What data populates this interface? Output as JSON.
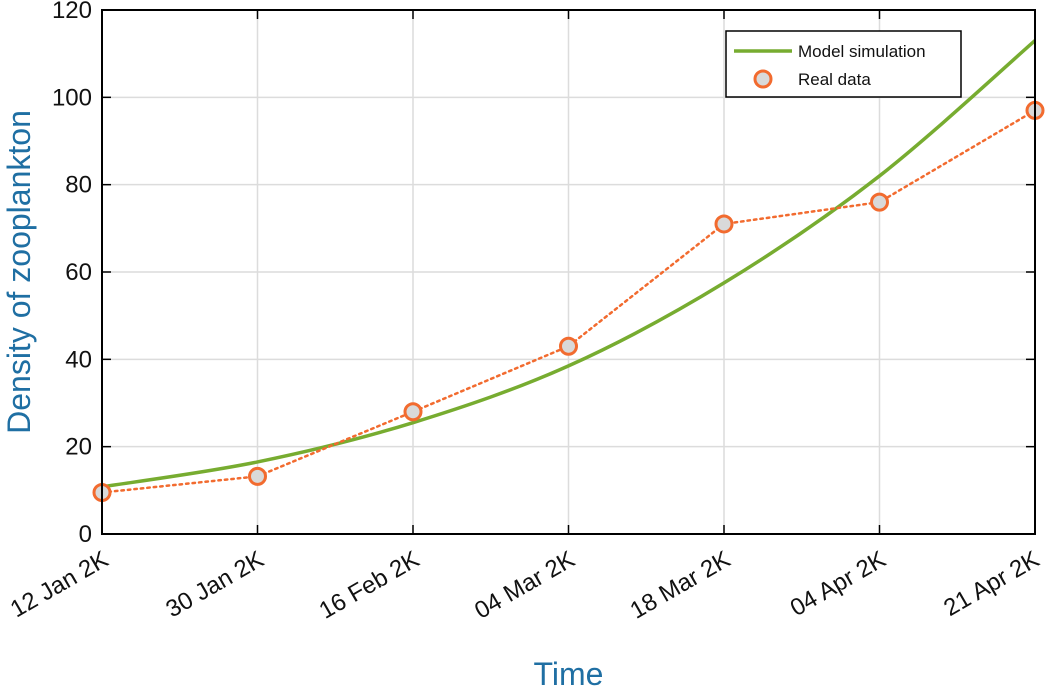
{
  "chart_data": {
    "type": "line",
    "xlabel": "Time",
    "ylabel": "Density of zooplankton",
    "x_ticks": [
      "12 Jan 2K",
      "30 Jan 2K",
      "16 Feb 2K",
      "04 Mar 2K",
      "18 Mar 2K",
      "04 Apr 2K",
      "21 Apr 2K"
    ],
    "y_ticks": [
      "0",
      "20",
      "40",
      "60",
      "80",
      "100",
      "120"
    ],
    "ylim": [
      0,
      120
    ],
    "grid": true,
    "legend": "top-right",
    "series": [
      {
        "name": "Model simulation",
        "style": "solid-line",
        "color": "#77ac30",
        "x": [
          "12 Jan 2K",
          "30 Jan 2K",
          "16 Feb 2K",
          "04 Mar 2K",
          "18 Mar 2K",
          "04 Apr 2K",
          "21 Apr 2K"
        ],
        "values": [
          10.8,
          16.5,
          25.5,
          38.5,
          57.5,
          82.0,
          113.0
        ]
      },
      {
        "name": "Real data",
        "style": "dotted-line-circle-markers",
        "color": "#f26b2f",
        "marker_fill": "#d9d9d9",
        "x": [
          "12 Jan 2K",
          "30 Jan 2K",
          "16 Feb 2K",
          "04 Mar 2K",
          "18 Mar 2K",
          "04 Apr 2K",
          "21 Apr 2K"
        ],
        "values": [
          9.5,
          13.2,
          28.0,
          43.0,
          71.0,
          76.0,
          97.0
        ]
      }
    ],
    "colors": {
      "axis_title": "#1f6fa3",
      "grid": "#dcdcdc",
      "axes": "#000000"
    }
  }
}
